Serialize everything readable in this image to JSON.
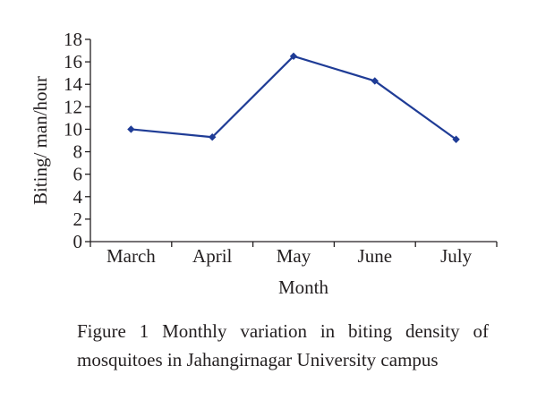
{
  "chart_data": {
    "type": "line",
    "title": "",
    "xlabel": "Month",
    "ylabel": "Biting/ man/hour",
    "categories": [
      "March",
      "April",
      "May",
      "June",
      "July"
    ],
    "series": [
      {
        "name": "Biting density",
        "values": [
          10.0,
          9.3,
          16.5,
          14.3,
          9.1
        ]
      }
    ],
    "ylim": [
      0,
      18
    ],
    "yticks": [
      0,
      2,
      4,
      6,
      8,
      10,
      12,
      14,
      16,
      18
    ],
    "grid": false,
    "legend": "none",
    "colors": {
      "line": "#1f3c96",
      "marker": "#1f3c96",
      "axis": "#231f20"
    }
  },
  "caption": "Figure 1 Monthly variation in biting density of mosquitoes in Jahangirnagar University campus"
}
